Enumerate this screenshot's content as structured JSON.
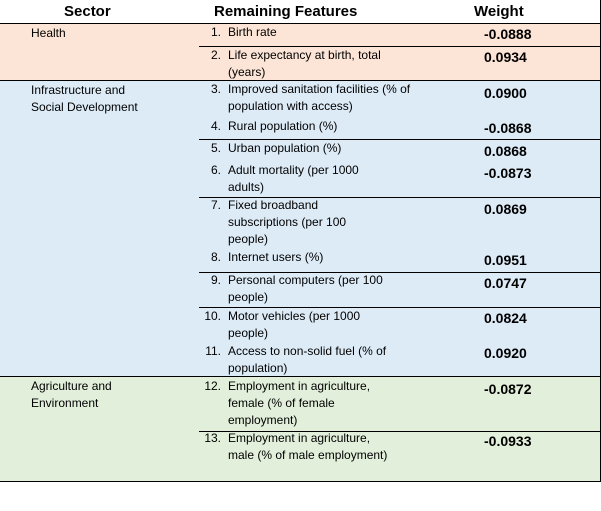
{
  "headers": {
    "sector": "Sector",
    "features": "Remaining Features",
    "weight": "Weight"
  },
  "sectors": [
    {
      "name": "Health",
      "color": "#fce4d6"
    },
    {
      "name": "Infrastructure and Social Development",
      "color": "#ddebf7"
    },
    {
      "name": "Agriculture and Environment",
      "color": "#e2efda"
    }
  ],
  "rows": [
    {
      "num": "1.",
      "feature": "Birth rate",
      "weight": "-0.0888"
    },
    {
      "num": "2.",
      "feature": "Life expectancy at birth, total (years)",
      "weight": "0.0934"
    },
    {
      "num": "3.",
      "feature": "Improved sanitation facilities (% of population with access)",
      "weight": "0.0900"
    },
    {
      "num": "4.",
      "feature": "Rural population (%)",
      "weight": "-0.0868"
    },
    {
      "num": "5.",
      "feature": "Urban population (%)",
      "weight": "0.0868"
    },
    {
      "num": "6.",
      "feature": "Adult mortality (per 1000 adults)",
      "weight": "-0.0873"
    },
    {
      "num": "7.",
      "feature": "Fixed broadband subscriptions (per 100 people)",
      "weight": "0.0869"
    },
    {
      "num": "8.",
      "feature": "Internet users (%)",
      "weight": "0.0951"
    },
    {
      "num": "9.",
      "feature": "Personal computers (per 100 people)",
      "weight": "0.0747"
    },
    {
      "num": "10.",
      "feature": "Motor vehicles (per 1000 people)",
      "weight": "0.0824"
    },
    {
      "num": "11.",
      "feature": "Access to non-solid fuel (% of population)",
      "weight": "0.0920"
    },
    {
      "num": "12.",
      "feature": "Employment in agriculture, female (% of female employment)",
      "weight": "-0.0872"
    },
    {
      "num": "13.",
      "feature": "Employment in agriculture, male (% of male employment)",
      "weight": "-0.0933"
    }
  ]
}
